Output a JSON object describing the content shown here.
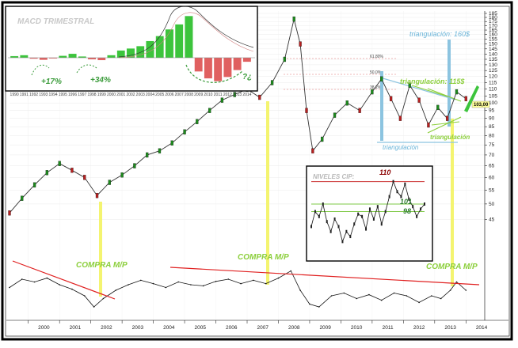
{
  "annotations": {
    "compra_1": "COMPRA M/P",
    "compra_2": "COMPRA M/P",
    "compra_3": "COMPRA M/P",
    "triang_160": "triangulación: 160$",
    "triang_115": "triangulación: 115$",
    "triang_lower": "triangulación",
    "triang_bottom": "triangulación",
    "fib_618": "61,80%",
    "fib_50": "50,0%",
    "fib_382": "38,2%",
    "price_box": "103,00"
  },
  "chart_data": [
    {
      "id": "main",
      "type": "line",
      "yscale": "log",
      "x": [
        1999.4,
        1999.8,
        2000.2,
        2000.6,
        2001.0,
        2001.4,
        2001.8,
        2002.2,
        2002.6,
        2003.0,
        2003.4,
        2003.8,
        2004.2,
        2004.6,
        2005.0,
        2005.4,
        2005.8,
        2006.2,
        2006.6,
        2007.0,
        2007.4,
        2007.8,
        2008.2,
        2008.5,
        2008.7,
        2008.9,
        2009.1,
        2009.4,
        2009.8,
        2010.2,
        2010.6,
        2011.0,
        2011.3,
        2011.6,
        2011.9,
        2012.2,
        2012.5,
        2012.8,
        2013.1,
        2013.4,
        2013.7,
        2014.0
      ],
      "y": [
        47,
        52,
        57,
        62,
        66,
        63,
        60,
        53,
        58,
        61,
        65,
        70,
        72,
        76,
        82,
        88,
        95,
        102,
        106,
        110,
        104,
        115,
        135,
        178,
        150,
        95,
        72,
        78,
        92,
        100,
        95,
        108,
        118,
        103,
        90,
        113,
        102,
        86,
        97,
        90,
        108,
        103
      ],
      "x_ticks": [
        "2000",
        "2001",
        "2002",
        "2003",
        "2004",
        "2005",
        "2006",
        "2007",
        "2008",
        "2009",
        "2010",
        "2011",
        "2012",
        "2013",
        "2014"
      ],
      "y_ticks": [
        45,
        50,
        55,
        60,
        65,
        70,
        75,
        80,
        85,
        90,
        95,
        100,
        105,
        110,
        115,
        120,
        125,
        130,
        135,
        140,
        145,
        150,
        155,
        160,
        165,
        170,
        175,
        180,
        185
      ],
      "y_tick_labels": [
        "45",
        "50",
        "55",
        "60",
        "65",
        "70",
        "75",
        "80",
        "85",
        "90",
        "95",
        "100",
        "105",
        "110",
        "115",
        "120",
        "125",
        "130",
        "135",
        "140",
        "145",
        "150",
        "155",
        "160",
        "165",
        "170",
        "175",
        "180",
        "185"
      ],
      "ylim": [
        42,
        188
      ],
      "xlim": [
        1999.4,
        2014.6
      ],
      "last_price": 103.0
    },
    {
      "id": "oscillator",
      "type": "line",
      "x": [
        1999.4,
        1999.8,
        2000.2,
        2000.6,
        2001.0,
        2001.4,
        2001.8,
        2002.1,
        2002.4,
        2002.8,
        2003.2,
        2003.6,
        2004.0,
        2004.4,
        2004.8,
        2005.2,
        2005.6,
        2006.0,
        2006.4,
        2006.8,
        2007.2,
        2007.6,
        2008.0,
        2008.4,
        2008.7,
        2009.0,
        2009.3,
        2009.7,
        2010.1,
        2010.5,
        2010.9,
        2011.3,
        2011.7,
        2012.1,
        2012.5,
        2012.9,
        2013.2,
        2013.5,
        2013.7,
        2014.0
      ],
      "y": [
        45,
        60,
        55,
        62,
        50,
        42,
        30,
        10,
        25,
        40,
        50,
        58,
        52,
        45,
        55,
        50,
        48,
        56,
        60,
        52,
        58,
        52,
        62,
        75,
        40,
        15,
        10,
        30,
        35,
        25,
        32,
        22,
        35,
        30,
        18,
        30,
        25,
        40,
        55,
        40
      ],
      "ylim": [
        0,
        100
      ]
    },
    {
      "id": "macd_inset",
      "type": "bar",
      "title": "MACD TRIMESTRAL",
      "categories": [
        "1990",
        "1991",
        "1992",
        "1993",
        "1994",
        "1995",
        "1996",
        "1997",
        "1998",
        "1999",
        "2000",
        "2001",
        "2002",
        "2003",
        "2004",
        "2005",
        "2006",
        "2007",
        "2008",
        "2009",
        "2010",
        "2011",
        "2012",
        "2013",
        "2014"
      ],
      "values": [
        0.5,
        0.8,
        -0.4,
        -0.8,
        -0.3,
        0.6,
        1.2,
        0.4,
        -0.6,
        -0.9,
        0.8,
        2.2,
        2.8,
        3.5,
        5.0,
        6.5,
        8.5,
        10.0,
        12.5,
        -5.0,
        -7.5,
        -8.5,
        -7.0,
        -4.5,
        -1.5
      ],
      "labels": [
        "+17%",
        "+34%",
        "?¿"
      ],
      "ylim": [
        -10,
        13
      ]
    },
    {
      "id": "niveles_cip",
      "type": "line",
      "title": "NIVELES CIP:",
      "x": [
        0,
        1,
        2,
        3,
        4,
        5,
        6,
        7,
        8,
        9,
        10,
        11,
        12,
        13,
        14,
        15,
        16,
        17,
        18,
        19,
        20,
        21,
        22,
        23,
        24,
        25,
        26,
        27,
        28,
        29
      ],
      "y": [
        92,
        98,
        96,
        101,
        94,
        90,
        95,
        92,
        86,
        90,
        88,
        93,
        97,
        96,
        91,
        99,
        95,
        100,
        93,
        98,
        104,
        110,
        106,
        104,
        109,
        103,
        100,
        96,
        99,
        101
      ],
      "levels": [
        "110",
        "101",
        "98"
      ],
      "level_values": [
        110,
        101,
        98
      ],
      "ylim": [
        82,
        114
      ]
    }
  ]
}
